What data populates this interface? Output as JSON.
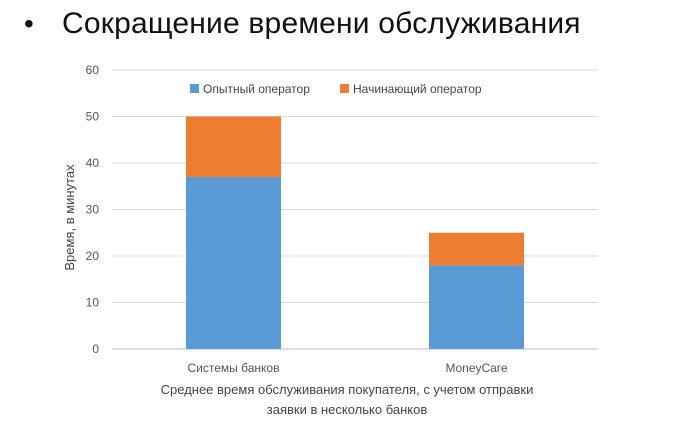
{
  "slide": {
    "bullet": "•",
    "title": "Сокращение времени обслуживания"
  },
  "chart_data": {
    "type": "bar",
    "stacked": true,
    "categories": [
      "Системы банков",
      "MoneyCare"
    ],
    "series": [
      {
        "name": "Опытный оператор",
        "color": "#5b9bd5",
        "values": [
          37,
          18
        ]
      },
      {
        "name": "Начинающий оператор",
        "color": "#ed7d31",
        "values": [
          13,
          7
        ]
      }
    ],
    "xlabel_lines": [
      "Среднее время обслуживания покупателя, с учетом отправки",
      "заявки в несколько банков"
    ],
    "ylabel": "Время, в минутах",
    "ylim": [
      0,
      60
    ],
    "yticks": [
      0,
      10,
      20,
      30,
      40,
      50,
      60
    ],
    "grid": true,
    "legend_position": "top-center"
  }
}
